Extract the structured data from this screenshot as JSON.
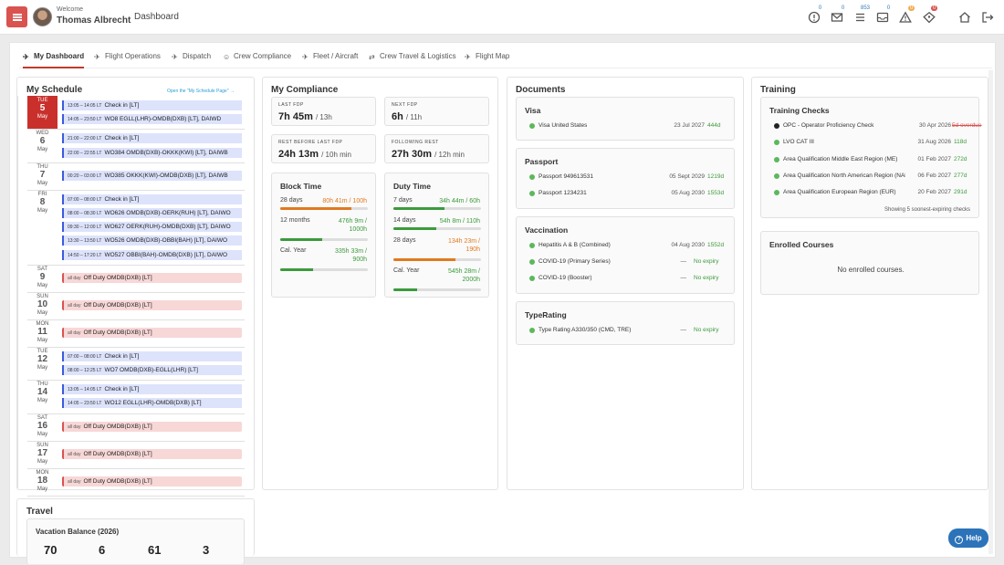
{
  "header": {
    "welcome": "Welcome",
    "user_name": "Thomas Albrecht",
    "page_title": "Dashboard",
    "icons": [
      {
        "name": "alert-circle-icon",
        "badge": "0"
      },
      {
        "name": "mail-icon",
        "badge": "0"
      },
      {
        "name": "list-icon",
        "badge": "853"
      },
      {
        "name": "inbox-icon",
        "badge": "0"
      },
      {
        "name": "warning-icon",
        "badge": "0"
      },
      {
        "name": "tag-icon",
        "badge": "0"
      },
      {
        "name": "home-icon",
        "badge": ""
      },
      {
        "name": "logout-icon",
        "badge": ""
      }
    ],
    "accent": "#d9534f"
  },
  "tabs": [
    {
      "label": "My Dashboard",
      "icon": "plane-icon",
      "active": true
    },
    {
      "label": "Flight Operations",
      "icon": "plane-icon"
    },
    {
      "label": "Dispatch",
      "icon": "plane-icon"
    },
    {
      "label": "Crew Compliance",
      "icon": "crew-icon"
    },
    {
      "label": "Fleet / Aircraft",
      "icon": "plane-icon"
    },
    {
      "label": "Crew Travel & Logistics",
      "icon": "route-icon"
    },
    {
      "label": "Flight Map",
      "icon": "plane-icon"
    }
  ],
  "schedule": {
    "title": "My Schedule",
    "link": "Open the \"My Schedule Page\" →",
    "days": [
      {
        "dow": "TUE",
        "day": "5",
        "month": "May",
        "today": true,
        "events": [
          {
            "time": "13:05 – 14:05 LT",
            "text": "Check in [LT]",
            "type": "duty"
          },
          {
            "time": "14:05 – 23:50 LT",
            "text": "WO8 EGLL(LHR)-OMDB(DXB) [LT], DAIWD",
            "type": "duty"
          }
        ]
      },
      {
        "dow": "WED",
        "day": "6",
        "month": "May",
        "events": [
          {
            "time": "21:00 – 22:00 LT",
            "text": "Check in [LT]",
            "type": "duty"
          },
          {
            "time": "22:00 – 22:55 LT",
            "text": "WO384 OMDB(DXB)-OKKK(KWI) [LT], DAIWB",
            "type": "duty"
          }
        ]
      },
      {
        "dow": "THU",
        "day": "7",
        "month": "May",
        "events": [
          {
            "time": "00:20 – 03:00 LT",
            "text": "WO385 OKKK(KWI)-OMDB(DXB) [LT], DAIWB",
            "type": "duty"
          }
        ]
      },
      {
        "dow": "FRI",
        "day": "8",
        "month": "May",
        "events": [
          {
            "time": "07:00 – 08:00 LT",
            "text": "Check in [LT]",
            "type": "duty"
          },
          {
            "time": "08:00 – 08:30 LT",
            "text": "WO626 OMDB(DXB)-OERK(RUH) [LT], DAIWO",
            "type": "duty"
          },
          {
            "time": "09:30 – 12:00 LT",
            "text": "WO627 OERK(RUH)-OMDB(DXB) [LT], DAIWO",
            "type": "duty"
          },
          {
            "time": "13:30 – 13:50 LT",
            "text": "WO526 OMDB(DXB)-OBBI(BAH) [LT], DAIWO",
            "type": "duty"
          },
          {
            "time": "14:50 – 17:20 LT",
            "text": "WO527 OBBI(BAH)-OMDB(DXB) [LT], DAIWO",
            "type": "duty"
          }
        ]
      },
      {
        "dow": "SAT",
        "day": "9",
        "month": "May",
        "events": [
          {
            "time": "all day",
            "text": "Off Duty OMDB(DXB) [LT]",
            "type": "off"
          }
        ]
      },
      {
        "dow": "SUN",
        "day": "10",
        "month": "May",
        "events": [
          {
            "time": "all day",
            "text": "Off Duty OMDB(DXB) [LT]",
            "type": "off"
          }
        ]
      },
      {
        "dow": "MON",
        "day": "11",
        "month": "May",
        "events": [
          {
            "time": "all day",
            "text": "Off Duty OMDB(DXB) [LT]",
            "type": "off"
          }
        ]
      },
      {
        "dow": "TUE",
        "day": "12",
        "month": "May",
        "events": [
          {
            "time": "07:00 – 08:00 LT",
            "text": "Check in [LT]",
            "type": "duty"
          },
          {
            "time": "08:00 – 12:25 LT",
            "text": "WO7 OMDB(DXB)-EGLL(LHR) [LT]",
            "type": "duty"
          }
        ]
      },
      {
        "dow": "THU",
        "day": "14",
        "month": "May",
        "events": [
          {
            "time": "13:05 – 14:05 LT",
            "text": "Check in [LT]",
            "type": "duty"
          },
          {
            "time": "14:05 – 23:50 LT",
            "text": "WO12 EGLL(LHR)-OMDB(DXB) [LT]",
            "type": "duty"
          }
        ]
      },
      {
        "dow": "SAT",
        "day": "16",
        "month": "May",
        "events": [
          {
            "time": "all day",
            "text": "Off Duty OMDB(DXB) [LT]",
            "type": "off"
          }
        ]
      },
      {
        "dow": "SUN",
        "day": "17",
        "month": "May",
        "events": [
          {
            "time": "all day",
            "text": "Off Duty OMDB(DXB) [LT]",
            "type": "off"
          }
        ]
      },
      {
        "dow": "MON",
        "day": "18",
        "month": "May",
        "events": [
          {
            "time": "all day",
            "text": "Off Duty OMDB(DXB) [LT]",
            "type": "off"
          }
        ]
      }
    ]
  },
  "compliance": {
    "title": "My Compliance",
    "last_fdp": {
      "label": "LAST FDP",
      "value": "7h 45m",
      "limit": "/ 13h"
    },
    "next_fdp": {
      "label": "NEXT FDP",
      "value": "6h",
      "limit": "/ 11h"
    },
    "rest_before": {
      "label": "REST BEFORE LAST FDP",
      "value": "24h 13m",
      "limit": "/ 10h min"
    },
    "following_rest": {
      "label": "FOLLOWING REST",
      "value": "27h 30m",
      "limit": "/ 12h min"
    },
    "block_time": {
      "title": "Block Time",
      "rows": [
        {
          "label": "28 days",
          "value": "80h 41m / 100h",
          "progress": 0.81,
          "color": "#e07a1f"
        },
        {
          "label": "12 months",
          "value": "476h 9m / 1000h",
          "progress": 0.48,
          "color": "#3c9a3c"
        },
        {
          "label": "Cal. Year",
          "value": "335h 33m / 900h",
          "progress": 0.37,
          "color": "#3c9a3c"
        }
      ]
    },
    "duty_time": {
      "title": "Duty Time",
      "rows": [
        {
          "label": "7 days",
          "value": "34h 44m / 60h",
          "progress": 0.58,
          "color": "#3c9a3c"
        },
        {
          "label": "14 days",
          "value": "54h 8m / 110h",
          "progress": 0.49,
          "color": "#3c9a3c"
        },
        {
          "label": "28 days",
          "value": "134h 23m / 190h",
          "progress": 0.71,
          "color": "#e07a1f"
        },
        {
          "label": "Cal. Year",
          "value": "545h 28m / 2000h",
          "progress": 0.27,
          "color": "#3c9a3c"
        }
      ]
    }
  },
  "documents": {
    "title": "Documents",
    "visa": {
      "title": "Visa",
      "items": [
        {
          "name": "Visa United States",
          "date": "23 Jul 2027",
          "left": "444d"
        }
      ]
    },
    "passport": {
      "title": "Passport",
      "items": [
        {
          "name": "Passport 949613531",
          "date": "05 Sept 2029",
          "left": "1219d"
        },
        {
          "name": "Passport 1234231",
          "date": "05 Aug 2030",
          "left": "1553d"
        }
      ]
    },
    "vaccination": {
      "title": "Vaccination",
      "items": [
        {
          "name": "Hepatitis A & B (Combined)",
          "date": "04 Aug 2030",
          "left": "1552d"
        },
        {
          "name": "COVID-19 (Primary Series)",
          "date": "—",
          "left": "No expiry"
        },
        {
          "name": "COVID-19 (Booster)",
          "date": "—",
          "left": "No expiry"
        }
      ]
    },
    "typerating": {
      "title": "TypeRating",
      "items": [
        {
          "name": "Type Rating A330/350 (CMD, TRE)",
          "date": "—",
          "left": "No expiry"
        }
      ]
    }
  },
  "training": {
    "title": "Training",
    "checks_title": "Training Checks",
    "checks": [
      {
        "name": "OPC - Operator Proficiency Check",
        "date": "30 Apr 2026",
        "left": "5d overdue",
        "overdue": true
      },
      {
        "name": "LVO CAT III",
        "date": "31 Aug 2026",
        "left": "118d"
      },
      {
        "name": "Area Qualification Middle East Region (ME)",
        "date": "01 Feb 2027",
        "left": "272d"
      },
      {
        "name": "Area Qualification North American Region (NAM)",
        "date": "06 Feb 2027",
        "left": "277d"
      },
      {
        "name": "Area Qualification European Region (EUR)",
        "date": "20 Feb 2027",
        "left": "291d"
      }
    ],
    "showing": "Showing 5 soonest-expiring checks",
    "courses_title": "Enrolled Courses",
    "courses_empty": "No enrolled courses."
  },
  "travel": {
    "title": "Travel",
    "vacation_title": "Vacation Balance (2026)",
    "values": [
      "70",
      "6",
      "61",
      "3"
    ]
  },
  "help": "Help"
}
